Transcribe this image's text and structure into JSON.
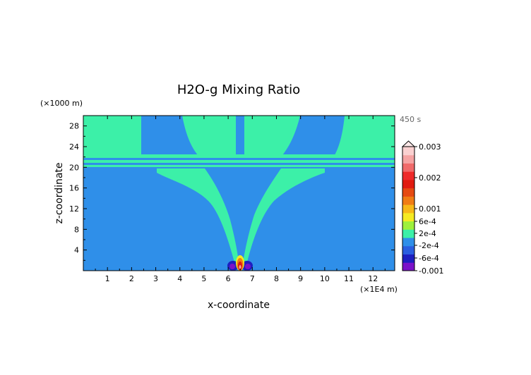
{
  "chart_data": {
    "type": "heatmap",
    "title": "H2O-g Mixing Ratio",
    "time_label": "450 s",
    "xlabel": "x-coordinate",
    "ylabel": "z-coordinate",
    "x_unit": "(×1E4 m)",
    "y_unit": "(×1000 m)",
    "xlim": [
      0,
      12.9
    ],
    "ylim": [
      0,
      30
    ],
    "x_ticks": [
      "1",
      "2",
      "3",
      "4",
      "5",
      "6",
      "7",
      "8",
      "9",
      "10",
      "11",
      "12"
    ],
    "y_ticks": [
      "4",
      "8",
      "12",
      "16",
      "20",
      "24",
      "28"
    ],
    "colorbar": {
      "labels": [
        "0.003",
        "0.002",
        "0.001",
        "6e-4",
        "2e-4",
        "-2e-4",
        "-6e-4",
        "-0.001"
      ],
      "colors": [
        "#7a12c9",
        "#1d1fc0",
        "#2a5ee0",
        "#2f8fe9",
        "#3cf0a8",
        "#9ef03c",
        "#f5ea22",
        "#f7b818",
        "#f07c14",
        "#e64a12",
        "#e11b10",
        "#ee2a2a",
        "#f06a6a",
        "#f5a3a3",
        "#fad0d0"
      ],
      "background": "#2f8fe9"
    },
    "fields": {
      "background_value": "-2e-4 to 2e-4",
      "plume_value": "2e-4 to 6e-4",
      "source_x": 6.4,
      "source_max": "0.003",
      "source_min": "-0.001"
    }
  }
}
